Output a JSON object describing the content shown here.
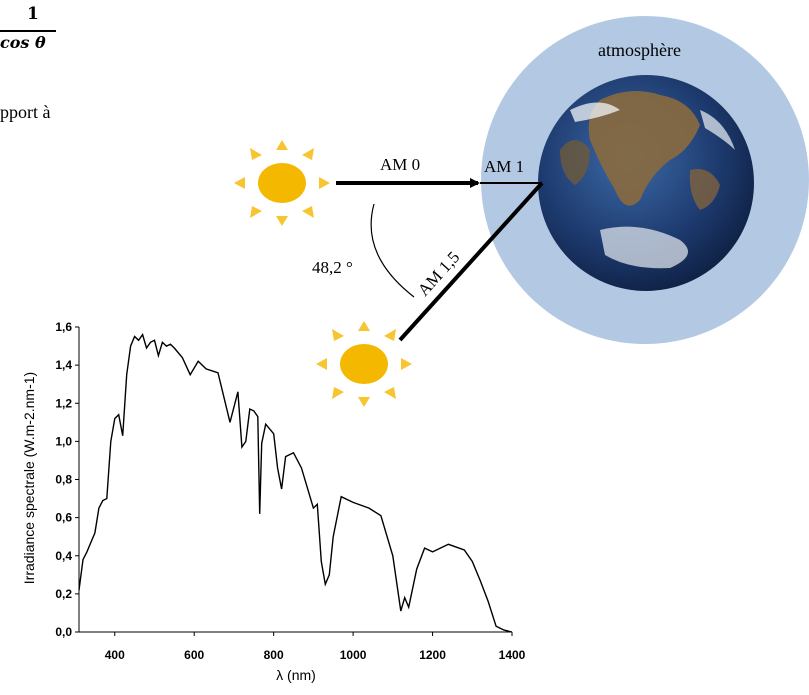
{
  "formula": {
    "numerator": "1",
    "denominator": "cos θ"
  },
  "text_fragment": "pport à",
  "diagram": {
    "atmosphere_label": "atmosphère",
    "am0_label": "AM 0",
    "am1_label": "AM 1",
    "am15_label": "AM 1,5",
    "angle_label": "48,2 °",
    "colors": {
      "sun": "#f5b800",
      "sun_rays": "#f7c530",
      "atmosphere": "#b3c9e3",
      "earth_ocean": "#1d3a6e",
      "earth_land": "#8a6a3e"
    }
  },
  "chart_data": {
    "type": "line",
    "title": "",
    "xlabel": "λ (nm)",
    "ylabel": "Irradiance spectrale (W.m-2.nm-1)",
    "xlim": [
      310,
      1400
    ],
    "ylim": [
      0,
      1.6
    ],
    "x_ticks": [
      "400",
      "600",
      "800",
      "1000",
      "1200",
      "1400"
    ],
    "y_ticks": [
      "0,0",
      "0,2",
      "0,4",
      "0,6",
      "0,8",
      "1,0",
      "1,2",
      "1,4",
      "1,6"
    ],
    "grid": false,
    "series": [
      {
        "x": [
          310,
          320,
          330,
          340,
          350,
          360,
          370,
          380,
          390,
          400,
          410,
          420,
          430,
          440,
          450,
          460,
          470,
          480,
          490,
          500,
          510,
          520,
          530,
          540,
          550,
          570,
          590,
          610,
          630,
          660,
          690,
          710,
          720,
          730,
          740,
          750,
          760,
          765,
          770,
          780,
          800,
          810,
          820,
          830,
          850,
          870,
          900,
          910,
          920,
          930,
          940,
          950,
          970,
          1000,
          1040,
          1070,
          1100,
          1120,
          1130,
          1140,
          1160,
          1180,
          1200,
          1240,
          1280,
          1300,
          1320,
          1340,
          1360,
          1380,
          1400
        ],
        "values": [
          0.22,
          0.38,
          0.42,
          0.47,
          0.52,
          0.65,
          0.69,
          0.7,
          1.0,
          1.12,
          1.14,
          1.03,
          1.35,
          1.5,
          1.55,
          1.53,
          1.56,
          1.49,
          1.52,
          1.53,
          1.45,
          1.52,
          1.5,
          1.51,
          1.49,
          1.44,
          1.35,
          1.42,
          1.38,
          1.36,
          1.1,
          1.26,
          0.97,
          1.0,
          1.17,
          1.16,
          1.13,
          0.62,
          0.99,
          1.09,
          1.04,
          0.86,
          0.75,
          0.92,
          0.94,
          0.86,
          0.65,
          0.67,
          0.37,
          0.25,
          0.3,
          0.5,
          0.71,
          0.68,
          0.65,
          0.61,
          0.4,
          0.11,
          0.18,
          0.13,
          0.33,
          0.44,
          0.42,
          0.46,
          0.43,
          0.37,
          0.27,
          0.16,
          0.03,
          0.01,
          0.0
        ]
      }
    ]
  }
}
